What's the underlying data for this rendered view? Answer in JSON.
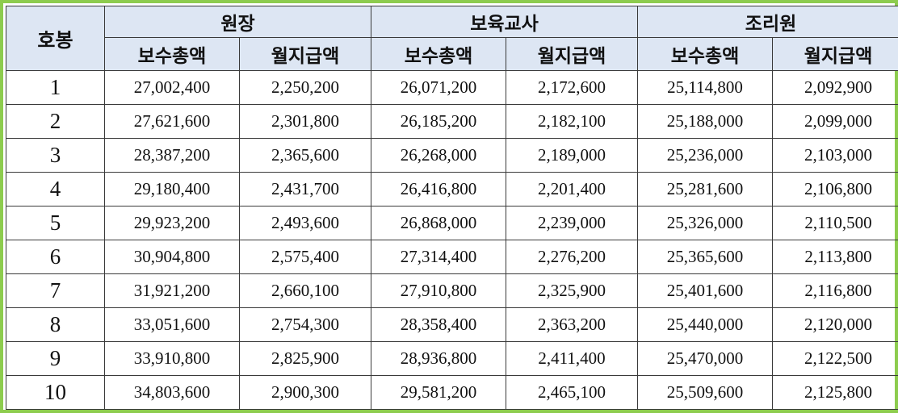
{
  "table": {
    "grade_header": "호봉",
    "groups": [
      {
        "label": "원장",
        "total_label": "보수총액",
        "monthly_label": "월지급액"
      },
      {
        "label": "보육교사",
        "total_label": "보수총액",
        "monthly_label": "월지급액"
      },
      {
        "label": "조리원",
        "total_label": "보수총액",
        "monthly_label": "월지급액"
      }
    ],
    "rows": [
      {
        "grade": "1",
        "values": [
          "27,002,400",
          "2,250,200",
          "26,071,200",
          "2,172,600",
          "25,114,800",
          "2,092,900"
        ]
      },
      {
        "grade": "2",
        "values": [
          "27,621,600",
          "2,301,800",
          "26,185,200",
          "2,182,100",
          "25,188,000",
          "2,099,000"
        ]
      },
      {
        "grade": "3",
        "values": [
          "28,387,200",
          "2,365,600",
          "26,268,000",
          "2,189,000",
          "25,236,000",
          "2,103,000"
        ]
      },
      {
        "grade": "4",
        "values": [
          "29,180,400",
          "2,431,700",
          "26,416,800",
          "2,201,400",
          "25,281,600",
          "2,106,800"
        ]
      },
      {
        "grade": "5",
        "values": [
          "29,923,200",
          "2,493,600",
          "26,868,000",
          "2,239,000",
          "25,326,000",
          "2,110,500"
        ]
      },
      {
        "grade": "6",
        "values": [
          "30,904,800",
          "2,575,400",
          "27,314,400",
          "2,276,200",
          "25,365,600",
          "2,113,800"
        ]
      },
      {
        "grade": "7",
        "values": [
          "31,921,200",
          "2,660,100",
          "27,910,800",
          "2,325,900",
          "25,401,600",
          "2,116,800"
        ]
      },
      {
        "grade": "8",
        "values": [
          "33,051,600",
          "2,754,300",
          "28,358,400",
          "2,363,200",
          "25,440,000",
          "2,120,000"
        ]
      },
      {
        "grade": "9",
        "values": [
          "33,910,800",
          "2,825,900",
          "28,936,800",
          "2,411,400",
          "25,470,000",
          "2,122,500"
        ]
      },
      {
        "grade": "10",
        "values": [
          "34,803,600",
          "2,900,300",
          "29,581,200",
          "2,465,100",
          "25,509,600",
          "2,125,800"
        ]
      }
    ]
  },
  "colors": {
    "frame_border": "#8dcc4e",
    "header_background": "#dde6f3",
    "grid_lines": "#3a3a3a"
  }
}
